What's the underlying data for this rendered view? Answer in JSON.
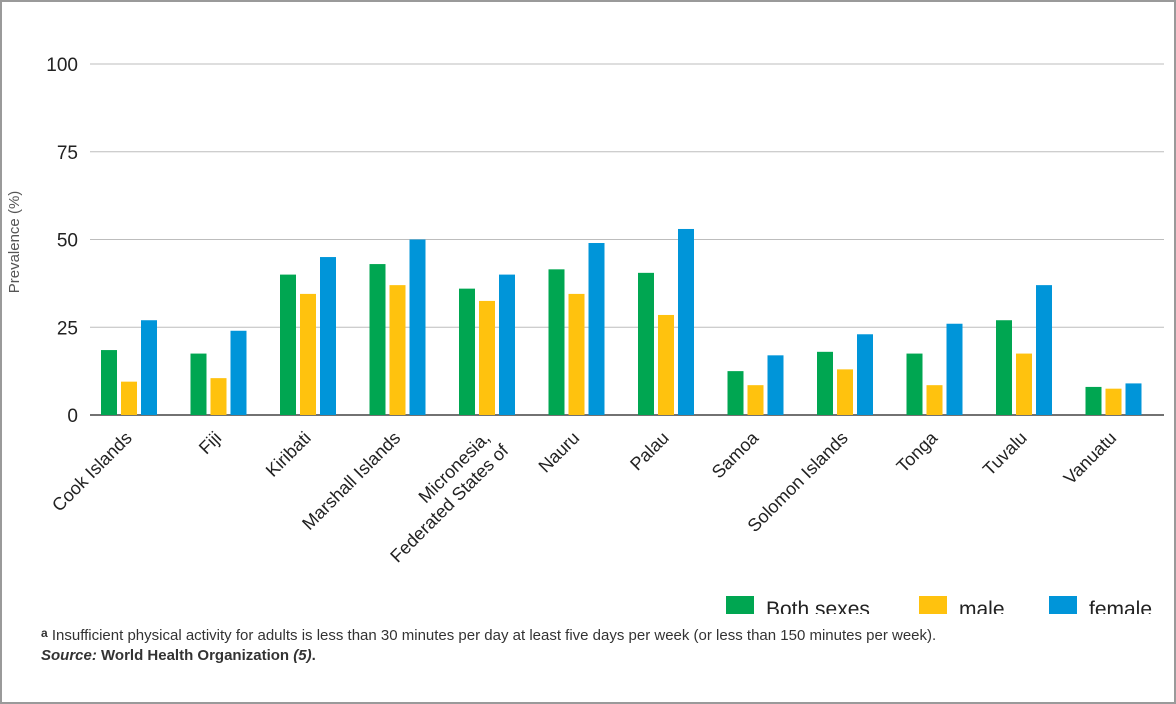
{
  "chart_data": {
    "type": "bar",
    "categories": [
      "Cook Islands",
      "Fiji",
      "Kiribati",
      "Marshall Islands",
      "Micronesia, Federated States of",
      "Nauru",
      "Palau",
      "Samoa",
      "Solomon Islands",
      "Tonga",
      "Tuvalu",
      "Vanuatu"
    ],
    "series": [
      {
        "name": "Both sexes",
        "color": "#00a651",
        "values": [
          18.5,
          17.5,
          40,
          43,
          36,
          41.5,
          40.5,
          12.5,
          18,
          17.5,
          27,
          8
        ]
      },
      {
        "name": "male",
        "color": "#ffc20e",
        "values": [
          9.5,
          10.5,
          34.5,
          37,
          32.5,
          34.5,
          28.5,
          8.5,
          13,
          8.5,
          17.5,
          7.5
        ]
      },
      {
        "name": "female",
        "color": "#0095d9",
        "values": [
          27,
          24,
          45,
          50,
          40,
          49,
          53,
          17,
          23,
          26,
          37,
          9
        ]
      }
    ],
    "yticks": [
      0,
      25,
      50,
      75,
      100
    ],
    "ylim": [
      0,
      100
    ],
    "ylabel": "Prevalence (%)",
    "xlabel": "",
    "grid": true,
    "legend_position": "bottom-right"
  },
  "footnote": {
    "marker": "a",
    "text": " Insufficient physical activity for adults is less than 30 minutes per day at least five days per week (or less than 150 minutes per week).",
    "source_label": "Source:",
    "source_text": " World Health Organization ",
    "source_ref": "(5)",
    "source_end": "."
  }
}
